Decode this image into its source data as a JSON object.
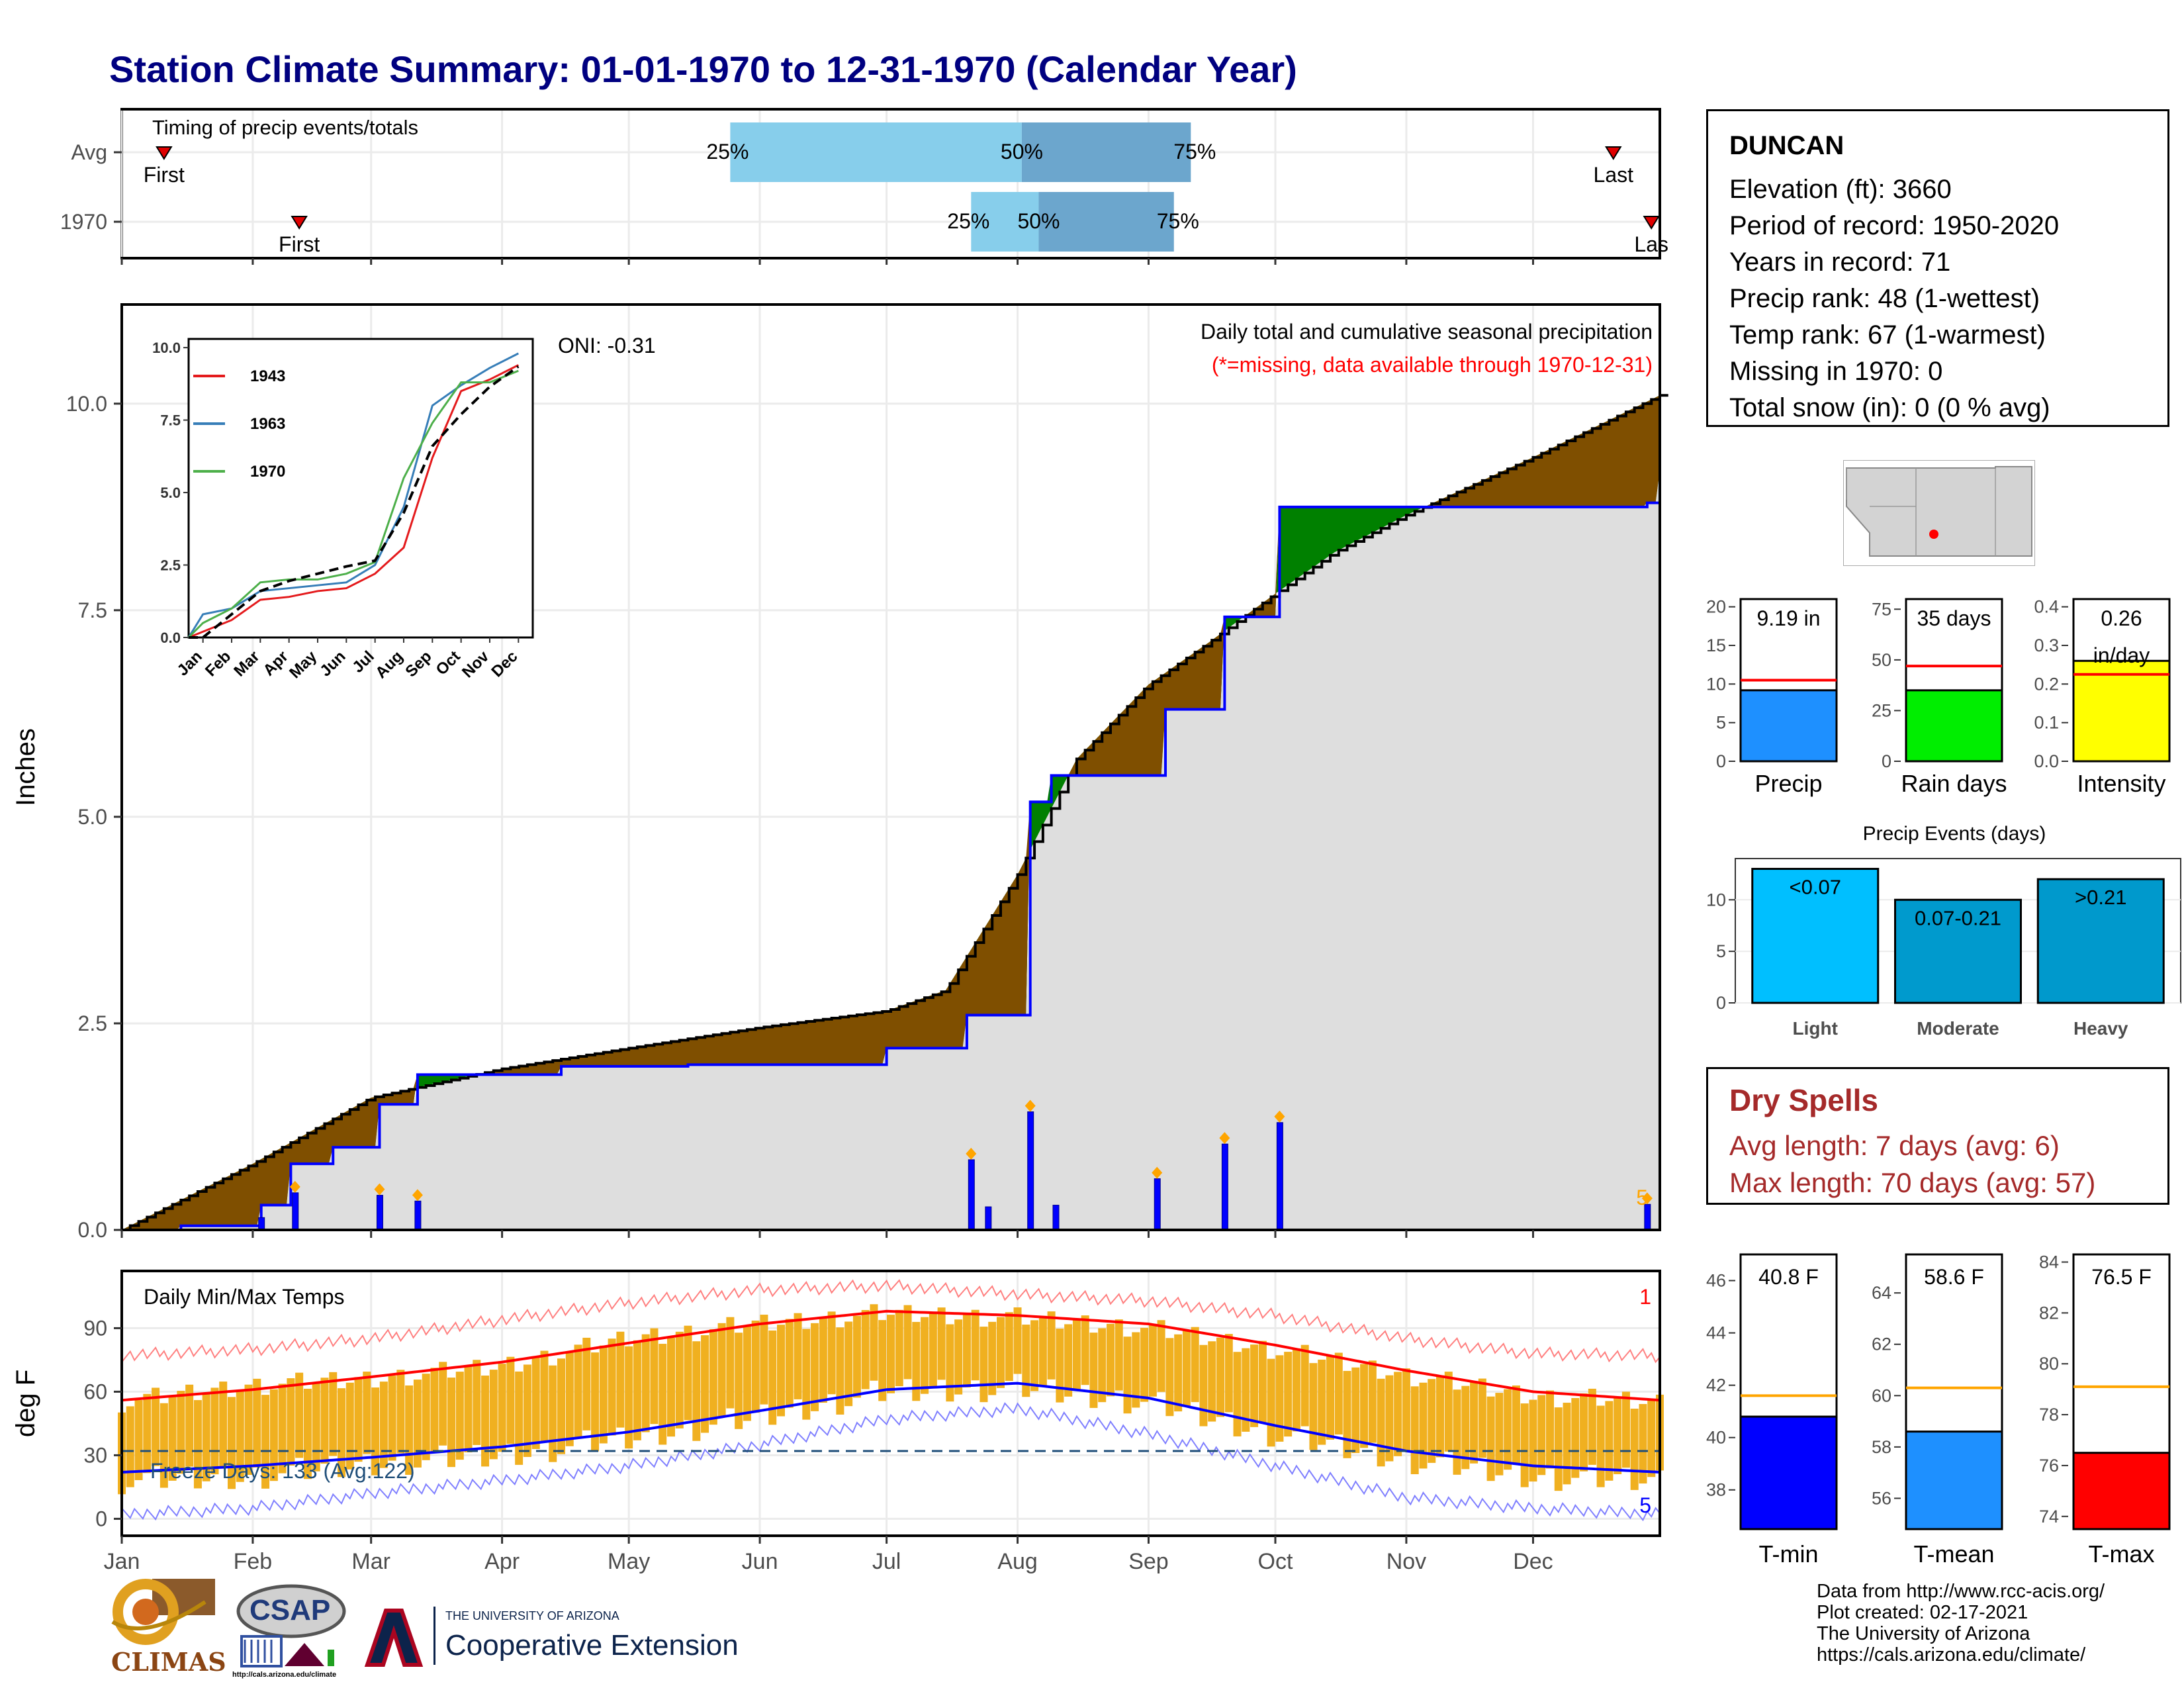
{
  "title": "Station Climate Summary: 01-01-1970 to 12-31-1970 (Calendar Year)",
  "timing_panel": {
    "label": "Timing of precip events/totals",
    "rows": [
      {
        "name": "Avg",
        "first_label": "First",
        "last_label": "Last",
        "first_day": 10,
        "last_day": 353,
        "p25_day": 144,
        "p50_day": 213,
        "p75_day": 253,
        "p25_label": "25%",
        "p50_label": "50%",
        "p75_label": "75%"
      },
      {
        "name": "1970",
        "first_label": "First",
        "last_label": "Las",
        "first_day": 42,
        "last_day": 362,
        "p25_day": 201,
        "p50_day": 217,
        "p75_day": 249,
        "p25_label": "25%",
        "p50_label": "50%",
        "p75_label": "75%"
      }
    ]
  },
  "station": {
    "name": "DUNCAN",
    "lines": [
      "Elevation (ft): 3660",
      "Period of record: 1950-2020",
      "Years in record: 71",
      "Precip rank: 48 (1-wettest)",
      "Temp rank: 67 (1-warmest)",
      "Missing in 1970: 0",
      "Total snow (in): 0 (0 % avg)"
    ]
  },
  "precip_panel": {
    "ylabel": "Inches",
    "oni": "ONI: -0.31",
    "title": "Daily total and cumulative seasonal precipitation",
    "subtitle": "(*=missing, data available through 1970-12-31)",
    "corner_count": "5",
    "colors": {
      "avg_fill": "#7f4f00",
      "year_fill": "#008000",
      "year_line": "#0000ff",
      "bg_fill": "#dedede"
    }
  },
  "temp_panel": {
    "ylabel": "deg F",
    "label": "Daily Min/Max Temps",
    "freeze": "Freeze Days: 133 (Avg:122)",
    "corner_top": "1",
    "corner_bottom": "5"
  },
  "months": [
    "Jan",
    "Feb",
    "Mar",
    "Apr",
    "May",
    "Jun",
    "Jul",
    "Aug",
    "Sep",
    "Oct",
    "Nov",
    "Dec"
  ],
  "dry_spells": {
    "title": "Dry Spells",
    "avg": "Avg length: 7 days (avg: 6)",
    "max": "Max length: 70 days (avg: 57)"
  },
  "credits": [
    "Data from http://www.rcc-acis.org/",
    "Plot created: 02-17-2021",
    "The University of Arizona",
    "https://cals.arizona.edu/climate/"
  ],
  "logos": {
    "climas": "CLIMAS",
    "csap": "CSAP",
    "ua_small": "THE UNIVERSITY OF ARIZONA",
    "ua_ext": "Cooperative Extension",
    "csap_url": "http://cals.arizona.edu/climate"
  },
  "chart_data": [
    {
      "type": "area",
      "title": "Daily total and cumulative seasonal precipitation",
      "ylabel": "Inches",
      "ylim": [
        0,
        11.2
      ],
      "yticks": [
        0.0,
        2.5,
        5.0,
        7.5,
        10.0
      ],
      "series": [
        {
          "name": "",
          "kind": "average cumulative",
          "x": [
            "01-01",
            "02-01",
            "03-01",
            "04-01",
            "05-01",
            "06-01",
            "07-01",
            "07-15",
            "08-01",
            "08-15",
            "09-01",
            "09-15",
            "10-01",
            "10-15",
            "11-01",
            "12-01",
            "12-31"
          ],
          "values": [
            0.0,
            0.8,
            1.6,
            1.95,
            2.2,
            2.45,
            2.65,
            2.9,
            4.3,
            5.7,
            6.6,
            7.1,
            7.7,
            8.2,
            8.65,
            9.35,
            10.1
          ]
        },
        {
          "name": "",
          "kind": "1970 cumulative",
          "x": [
            "01-01",
            "01-15",
            "02-03",
            "02-10",
            "02-20",
            "03-03",
            "03-12",
            "04-15",
            "05-15",
            "07-01",
            "07-20",
            "08-04",
            "08-09",
            "09-05",
            "09-19",
            "10-02",
            "11-15",
            "12-28",
            "12-31"
          ],
          "values": [
            0.0,
            0.05,
            0.3,
            0.8,
            1.0,
            1.52,
            1.88,
            1.98,
            2.0,
            2.2,
            2.6,
            5.18,
            5.5,
            6.3,
            7.42,
            8.75,
            8.75,
            8.8,
            9.19
          ]
        },
        {
          "name": "",
          "kind": "daily precipitation",
          "x": [
            "02-03",
            "02-11",
            "03-03",
            "03-12",
            "07-21",
            "07-25",
            "08-04",
            "08-10",
            "09-03",
            "09-19",
            "10-02",
            "12-28"
          ],
          "values": [
            0.15,
            0.45,
            0.42,
            0.35,
            0.85,
            0.28,
            1.43,
            0.3,
            0.62,
            1.04,
            1.3,
            0.31
          ]
        }
      ]
    },
    {
      "type": "line",
      "inset": true,
      "categories": [
        "Jan",
        "Feb",
        "Mar",
        "Apr",
        "May",
        "Jun",
        "Jul",
        "Aug",
        "Sep",
        "Oct",
        "Nov",
        "Dec"
      ],
      "yticks": [
        0.0,
        2.5,
        5.0,
        7.5,
        10.0
      ],
      "series": [
        {
          "name": "1943",
          "color": "#e41a1c",
          "values": [
            0.2,
            0.6,
            1.3,
            1.4,
            1.6,
            1.7,
            2.2,
            3.1,
            6.2,
            8.5,
            8.9,
            9.4
          ]
        },
        {
          "name": "1963",
          "color": "#377eb8",
          "values": [
            0.8,
            1.0,
            1.6,
            1.7,
            1.8,
            1.9,
            2.5,
            4.5,
            8.0,
            8.7,
            9.3,
            9.8
          ]
        },
        {
          "name": "1970",
          "color": "#4daf4a",
          "values": [
            0.5,
            1.0,
            1.9,
            2.0,
            2.0,
            2.2,
            2.6,
            5.5,
            7.4,
            8.8,
            8.8,
            9.2
          ]
        },
        {
          "name": "",
          "color": "#000000",
          "values": [
            0.0,
            0.8,
            1.6,
            1.95,
            2.2,
            2.45,
            2.65,
            4.3,
            6.6,
            7.7,
            8.65,
            9.35
          ]
        }
      ]
    },
    {
      "type": "line",
      "title": "Daily Min/Max Temps",
      "ylabel": "deg F",
      "yticks": [
        0,
        30,
        60,
        90
      ],
      "x": [
        "01-01",
        "02-01",
        "03-01",
        "04-01",
        "05-01",
        "06-01",
        "07-01",
        "08-01",
        "09-01",
        "10-01",
        "11-01",
        "12-01",
        "12-31"
      ],
      "series": [
        {
          "name": "",
          "kind": "avg max",
          "values": [
            56,
            61,
            67,
            74,
            83,
            92,
            98,
            96,
            92,
            82,
            70,
            60,
            56
          ]
        },
        {
          "name": "",
          "kind": "avg min",
          "values": [
            22,
            25,
            29,
            34,
            41,
            51,
            61,
            64,
            57,
            44,
            32,
            25,
            22
          ]
        },
        {
          "name": "",
          "kind": "record high",
          "values": [
            77,
            80,
            85,
            94,
            102,
            108,
            110,
            106,
            103,
            96,
            85,
            78,
            77
          ]
        },
        {
          "name": "",
          "kind": "record low",
          "values": [
            2,
            5,
            12,
            18,
            25,
            35,
            47,
            52,
            40,
            25,
            10,
            5,
            2
          ]
        },
        {
          "name": "",
          "kind": "1970 daily range low",
          "values": [
            18,
            20,
            26,
            30,
            38,
            48,
            60,
            62,
            55,
            40,
            28,
            20,
            18
          ]
        },
        {
          "name": "",
          "kind": "1970 daily range high",
          "values": [
            55,
            63,
            66,
            72,
            85,
            92,
            97,
            95,
            90,
            80,
            68,
            58,
            55
          ]
        }
      ]
    },
    {
      "type": "bar",
      "categories": [
        "Precip"
      ],
      "values": [
        9.19
      ],
      "avg": 10.5,
      "yticks": [
        0,
        5,
        10,
        15,
        20
      ],
      "ylim": [
        0,
        21
      ],
      "label": "9.19 in",
      "color": "#1e90ff"
    },
    {
      "type": "bar",
      "categories": [
        "Rain days"
      ],
      "values": [
        35
      ],
      "avg": 47,
      "yticks": [
        0,
        25,
        50,
        75
      ],
      "ylim": [
        0,
        80
      ],
      "label": "35 days",
      "color": "#00ee00"
    },
    {
      "type": "bar",
      "categories": [
        "Intensity"
      ],
      "values": [
        0.26
      ],
      "avg": 0.225,
      "yticks": [
        0.0,
        0.1,
        0.2,
        0.3,
        0.4
      ],
      "ylim": [
        0,
        0.42
      ],
      "label": "0.26 in/day",
      "color": "#ffff00"
    },
    {
      "type": "bar",
      "title": "Precip Events (days)",
      "categories": [
        "Light",
        "Moderate",
        "Heavy"
      ],
      "values": [
        13,
        10,
        12
      ],
      "labels": [
        "<0.07",
        "0.07-0.21",
        ">0.21"
      ],
      "yticks": [
        0,
        5,
        10
      ],
      "colors": [
        "#00bfff",
        "#009acd",
        "#0099cc"
      ]
    },
    {
      "type": "bar",
      "categories": [
        "T-min"
      ],
      "values": [
        40.8
      ],
      "avg": 41.6,
      "yticks": [
        38,
        40,
        42,
        44,
        46
      ],
      "ylim": [
        36.5,
        47
      ],
      "label": "40.8 F",
      "color": "#0000ff"
    },
    {
      "type": "bar",
      "categories": [
        "T-mean"
      ],
      "values": [
        58.6
      ],
      "avg": 60.3,
      "yticks": [
        56,
        58,
        60,
        62,
        64
      ],
      "ylim": [
        54.8,
        65.5
      ],
      "label": "58.6 F",
      "color": "#1e90ff"
    },
    {
      "type": "bar",
      "categories": [
        "T-max"
      ],
      "values": [
        76.5
      ],
      "avg": 79.1,
      "yticks": [
        74,
        76,
        78,
        80,
        82,
        84
      ],
      "ylim": [
        73.5,
        84.3
      ],
      "label": "76.5 F",
      "color": "#ff0000"
    }
  ]
}
